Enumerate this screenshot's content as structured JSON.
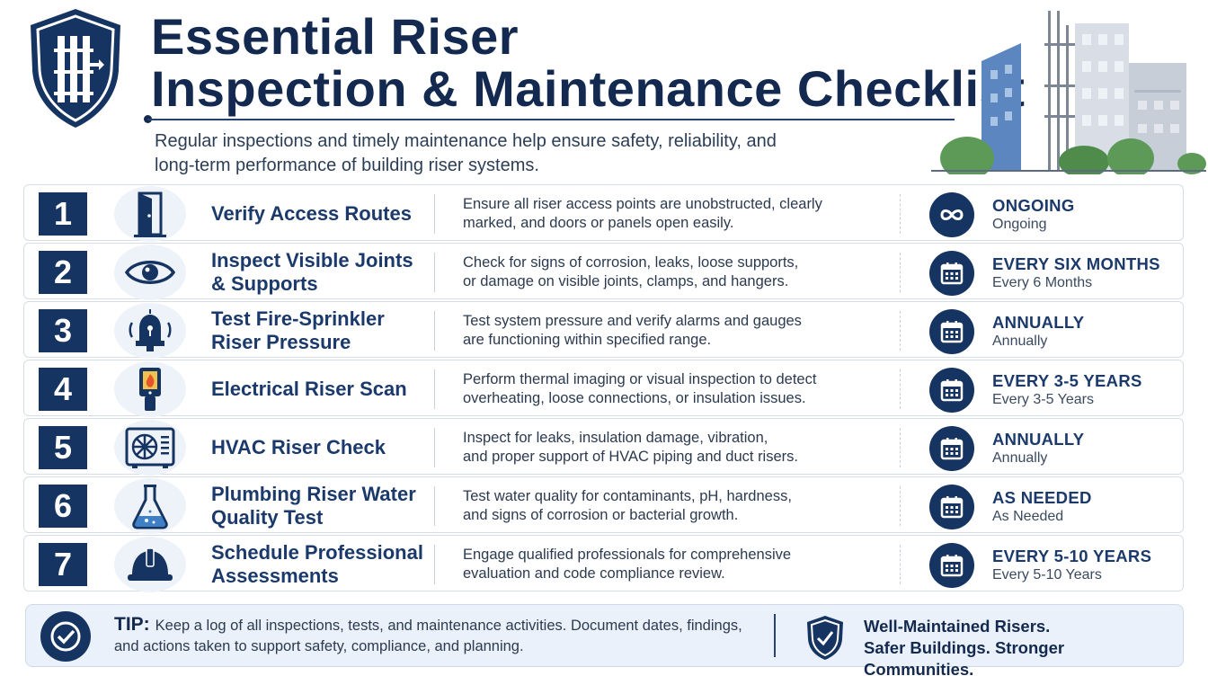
{
  "header": {
    "title_line1": "Essential Riser",
    "title_line2": "Inspection & Maintenance Checklist",
    "subtitle_line1": "Regular inspections and timely maintenance help ensure safety, reliability, and",
    "subtitle_line2": "long-term performance of building riser systems."
  },
  "items": [
    {
      "number": "1",
      "icon": "door-icon",
      "title": "Verify Access Routes",
      "desc_line1": "Ensure all riser access points are unobstructed, clearly",
      "desc_line2": "marked, and doors or panels open easily.",
      "freq_icon": "infinity-icon",
      "freq_main": "ONGOING",
      "freq_sub": "Ongoing"
    },
    {
      "number": "2",
      "icon": "eye-icon",
      "title": "Inspect Visible Joints & Supports",
      "desc_line1": "Check for signs of corrosion, leaks, loose supports,",
      "desc_line2": "or damage on visible joints, clamps, and hangers.",
      "freq_icon": "calendar-icon",
      "freq_main": "EVERY SIX MONTHS",
      "freq_sub": "Every 6 Months"
    },
    {
      "number": "3",
      "icon": "alarm-bell-icon",
      "title": "Test Fire-Sprinkler Riser Pressure",
      "desc_line1": "Test system pressure and verify alarms and gauges",
      "desc_line2": "are functioning within specified range.",
      "freq_icon": "calendar-icon",
      "freq_main": "ANNUALLY",
      "freq_sub": "Annually"
    },
    {
      "number": "4",
      "icon": "thermal-camera-icon",
      "title": "Electrical Riser Scan",
      "desc_line1": "Perform thermal imaging or visual inspection to detect",
      "desc_line2": "overheating, loose connections, or insulation issues.",
      "freq_icon": "calendar-icon",
      "freq_main": "EVERY 3-5 YEARS",
      "freq_sub": "Every 3-5 Years"
    },
    {
      "number": "5",
      "icon": "hvac-unit-icon",
      "title": "HVAC Riser Check",
      "desc_line1": "Inspect for leaks, insulation damage, vibration,",
      "desc_line2": "and proper support of HVAC piping and duct risers.",
      "freq_icon": "calendar-icon",
      "freq_main": "ANNUALLY",
      "freq_sub": "Annually"
    },
    {
      "number": "6",
      "icon": "flask-icon",
      "title": "Plumbing Riser Water Quality Test",
      "desc_line1": "Test water quality for contaminants, pH, hardness,",
      "desc_line2": "and signs of corrosion or bacterial growth.",
      "freq_icon": "calendar-icon",
      "freq_main": "AS NEEDED",
      "freq_sub": "As Needed"
    },
    {
      "number": "7",
      "icon": "hard-hat-icon",
      "title": "Schedule Professional Assessments",
      "desc_line1": "Engage qualified professionals for comprehensive",
      "desc_line2": "evaluation and code compliance review.",
      "freq_icon": "calendar-icon",
      "freq_main": "EVERY 5-10 YEARS",
      "freq_sub": "Every 5-10 Years"
    }
  ],
  "tip": {
    "label": "TIP:",
    "text": "Keep a log of all inspections, tests, and maintenance activities. Document dates, findings, and actions taken to support safety, compliance, and planning."
  },
  "slogan": {
    "line1": "Well-Maintained Risers.",
    "line2": "Safer Buildings. Stronger Communities."
  },
  "colors": {
    "navy": "#163461",
    "title": "#13294f",
    "accent_blue": "#1b3a6b",
    "tip_bg": "#eaf1fa"
  }
}
